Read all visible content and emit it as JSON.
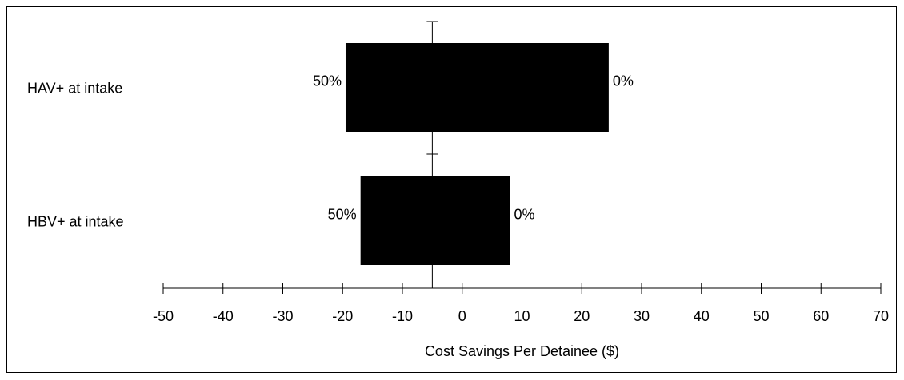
{
  "chart_data": {
    "type": "bar",
    "chart_kind": "tornado",
    "title": "",
    "xlabel": "Cost Savings Per Detainee ($)",
    "ylabel": "",
    "xlim": [
      -50,
      70
    ],
    "xticks": [
      -50,
      -40,
      -30,
      -20,
      -10,
      0,
      10,
      20,
      30,
      40,
      50,
      60,
      70
    ],
    "baseline": -5,
    "grid": false,
    "legend": "none",
    "colors": {
      "bar": "#000000",
      "axis": "#000000"
    },
    "bars": [
      {
        "label": "HAV+ at intake",
        "low": -19.5,
        "high": 24.5,
        "low_label": "50%",
        "high_label": "0%"
      },
      {
        "label": "HBV+ at intake",
        "low": -17,
        "high": 8,
        "low_label": "50%",
        "high_label": "0%"
      }
    ]
  }
}
